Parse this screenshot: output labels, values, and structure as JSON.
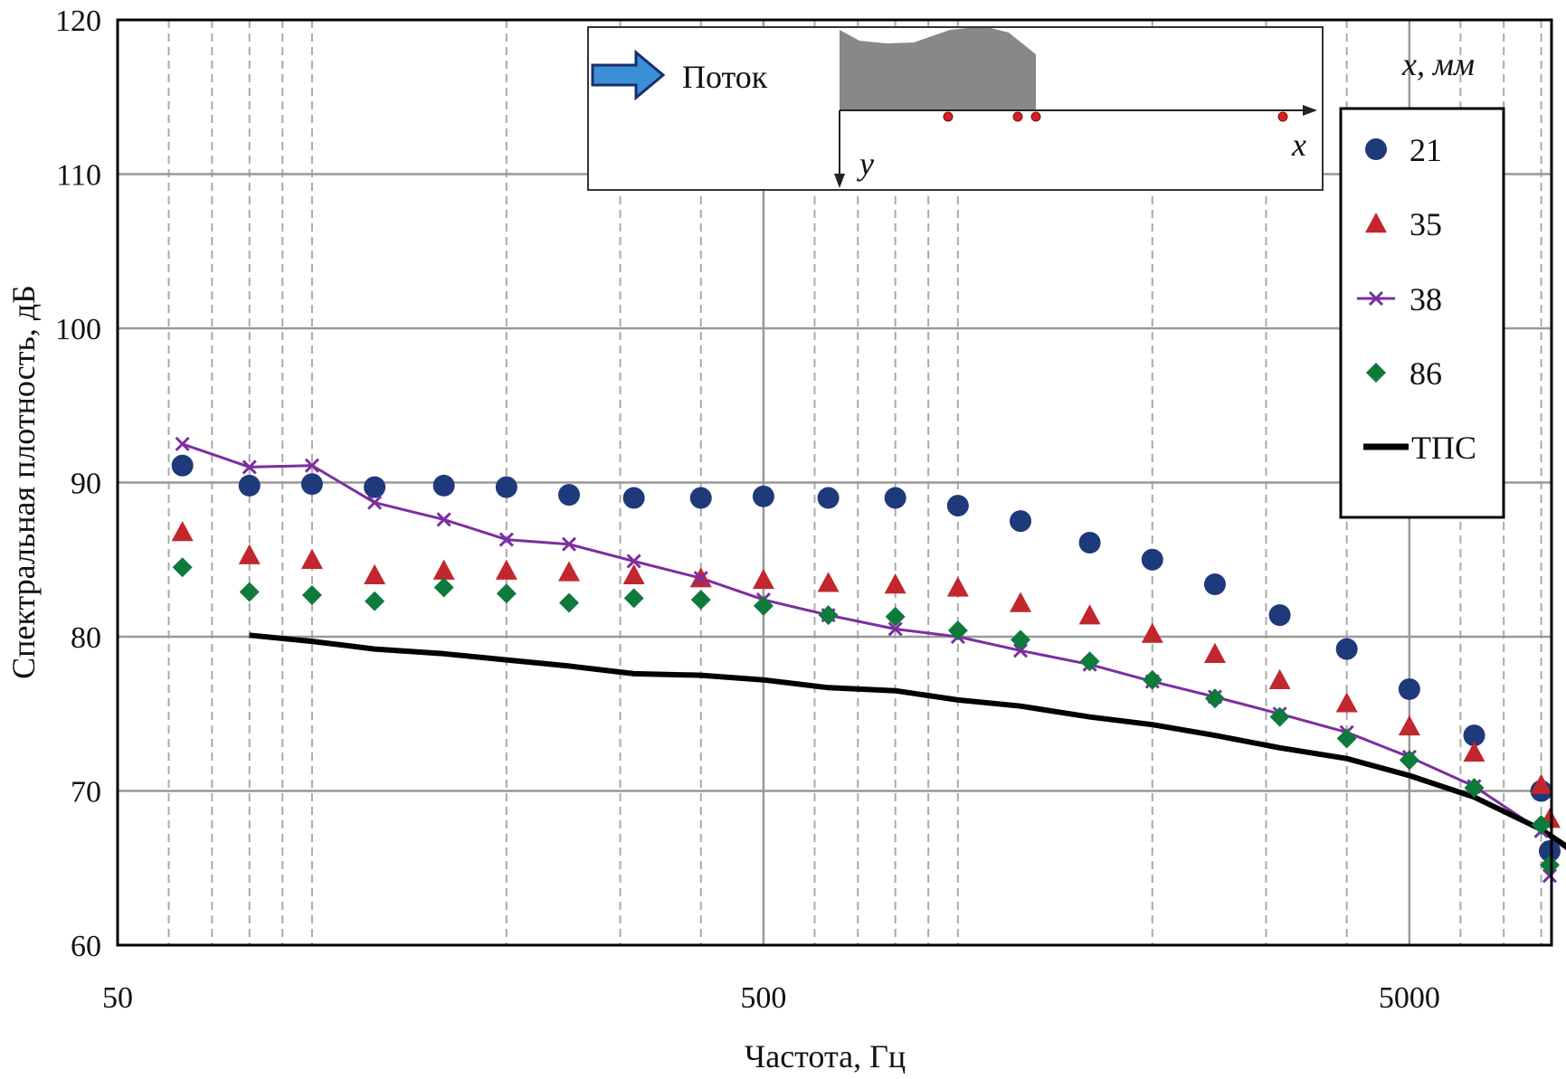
{
  "chart_data": {
    "type": "scatter",
    "xlabel": "Частота, Гц",
    "ylabel": "Спектральная плотность, дБ",
    "xscale": "log",
    "xlim": [
      50,
      8300
    ],
    "ylim": [
      60,
      120
    ],
    "xticks": [
      "50",
      "500",
      "5000"
    ],
    "yticks": [
      "60",
      "70",
      "80",
      "90",
      "100",
      "110",
      "120"
    ],
    "grid": true,
    "legend_position": "right",
    "legend_title": "x, мм",
    "inset": {
      "flow_label": "Поток",
      "x_axis_label": "x",
      "y_axis_label": "y"
    },
    "colors": {
      "s21": "#1f3a7a",
      "s35": "#c1272d",
      "s38": "#7b2fa0",
      "s86": "#0e7a3c",
      "tps": "#000000",
      "arrow": "#3a8fd6",
      "profile": "#888888"
    },
    "series": [
      {
        "name": "21",
        "marker": "circle",
        "points": [
          [
            63,
            91.1
          ],
          [
            80,
            89.8
          ],
          [
            100,
            89.9
          ],
          [
            125,
            89.7
          ],
          [
            160,
            89.8
          ],
          [
            200,
            89.7
          ],
          [
            250,
            89.2
          ],
          [
            315,
            89.0
          ],
          [
            400,
            89.0
          ],
          [
            500,
            89.1
          ],
          [
            630,
            89.0
          ],
          [
            800,
            89.0
          ],
          [
            1000,
            88.5
          ],
          [
            1250,
            87.5
          ],
          [
            1600,
            86.1
          ],
          [
            2000,
            85.0
          ],
          [
            2500,
            83.4
          ],
          [
            3150,
            81.4
          ],
          [
            4000,
            79.2
          ],
          [
            5000,
            76.6
          ],
          [
            6300,
            73.6
          ],
          [
            8000,
            70.0
          ],
          [
            10000,
            66.1
          ]
        ]
      },
      {
        "name": "35",
        "marker": "triangle",
        "points": [
          [
            63,
            86.8
          ],
          [
            80,
            85.3
          ],
          [
            100,
            85.0
          ],
          [
            125,
            84.0
          ],
          [
            160,
            84.3
          ],
          [
            200,
            84.3
          ],
          [
            250,
            84.2
          ],
          [
            315,
            84.0
          ],
          [
            400,
            83.8
          ],
          [
            500,
            83.7
          ],
          [
            630,
            83.5
          ],
          [
            800,
            83.4
          ],
          [
            1000,
            83.2
          ],
          [
            1250,
            82.2
          ],
          [
            1600,
            81.4
          ],
          [
            2000,
            80.2
          ],
          [
            2500,
            78.9
          ],
          [
            3150,
            77.2
          ],
          [
            4000,
            75.7
          ],
          [
            5000,
            74.2
          ],
          [
            6300,
            72.5
          ],
          [
            8000,
            70.4
          ],
          [
            10000,
            68.2
          ]
        ]
      },
      {
        "name": "38",
        "marker": "x-line",
        "points": [
          [
            63,
            92.5
          ],
          [
            80,
            91.0
          ],
          [
            100,
            91.1
          ],
          [
            125,
            88.7
          ],
          [
            160,
            87.6
          ],
          [
            200,
            86.3
          ],
          [
            250,
            86.0
          ],
          [
            315,
            84.9
          ],
          [
            400,
            83.8
          ],
          [
            500,
            82.4
          ],
          [
            630,
            81.4
          ],
          [
            800,
            80.5
          ],
          [
            1000,
            80.0
          ],
          [
            1250,
            79.1
          ],
          [
            1600,
            78.2
          ],
          [
            2000,
            77.1
          ],
          [
            2500,
            76.1
          ],
          [
            3150,
            75.0
          ],
          [
            4000,
            73.8
          ],
          [
            5000,
            72.2
          ],
          [
            6300,
            70.3
          ],
          [
            8000,
            67.4
          ],
          [
            10000,
            64.5
          ]
        ]
      },
      {
        "name": "86",
        "marker": "diamond",
        "points": [
          [
            63,
            84.5
          ],
          [
            80,
            82.9
          ],
          [
            100,
            82.7
          ],
          [
            125,
            82.3
          ],
          [
            160,
            83.2
          ],
          [
            200,
            82.8
          ],
          [
            250,
            82.2
          ],
          [
            315,
            82.5
          ],
          [
            400,
            82.4
          ],
          [
            500,
            82.0
          ],
          [
            630,
            81.4
          ],
          [
            800,
            81.3
          ],
          [
            1000,
            80.4
          ],
          [
            1250,
            79.8
          ],
          [
            1600,
            78.4
          ],
          [
            2000,
            77.2
          ],
          [
            2500,
            76.0
          ],
          [
            3150,
            74.8
          ],
          [
            4000,
            73.4
          ],
          [
            5000,
            72.0
          ],
          [
            6300,
            70.2
          ],
          [
            8000,
            67.8
          ],
          [
            10000,
            65.2
          ]
        ]
      },
      {
        "name": "ТПС",
        "marker": "line",
        "points": [
          [
            80,
            80.1
          ],
          [
            100,
            79.7
          ],
          [
            125,
            79.2
          ],
          [
            160,
            78.9
          ],
          [
            200,
            78.5
          ],
          [
            250,
            78.1
          ],
          [
            315,
            77.6
          ],
          [
            400,
            77.5
          ],
          [
            500,
            77.2
          ],
          [
            630,
            76.7
          ],
          [
            800,
            76.5
          ],
          [
            1000,
            75.9
          ],
          [
            1250,
            75.5
          ],
          [
            1600,
            74.8
          ],
          [
            2000,
            74.3
          ],
          [
            2500,
            73.6
          ],
          [
            3150,
            72.8
          ],
          [
            4000,
            72.1
          ],
          [
            5000,
            71.0
          ],
          [
            6300,
            69.6
          ],
          [
            8000,
            67.5
          ],
          [
            10000,
            64.8
          ]
        ]
      }
    ]
  }
}
